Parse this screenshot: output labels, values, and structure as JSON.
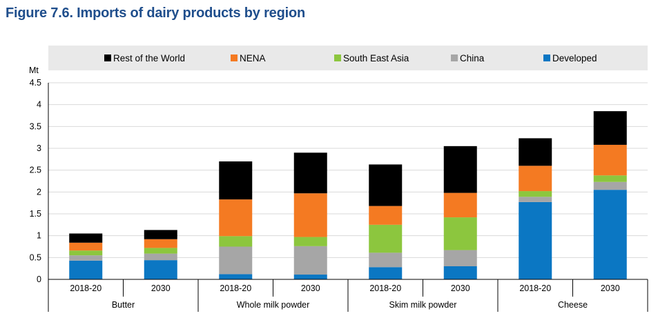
{
  "figure": {
    "title": "Figure 7.6. Imports of dairy products by region"
  },
  "chart_data": {
    "type": "bar",
    "stacked": true,
    "title": "Figure 7.6. Imports of dairy products by region",
    "ylabel": "Mt",
    "xlabel": "",
    "ylim": [
      0,
      4.5
    ],
    "yticks": [
      "0",
      "0.5",
      "1",
      "1.5",
      "2",
      "2.5",
      "3",
      "3.5",
      "4",
      "4.5"
    ],
    "groups": [
      "Butter",
      "Whole milk powder",
      "Skim milk powder",
      "Cheese"
    ],
    "categories": [
      "2018-20",
      "2030",
      "2018-20",
      "2030",
      "2018-20",
      "2030",
      "2018-20",
      "2030"
    ],
    "legend_position": "top",
    "legend_order": [
      "Rest of the World",
      "NENA",
      "South East Asia",
      "China",
      "Developed"
    ],
    "series": [
      {
        "name": "Developed",
        "color": "#0b77c3",
        "values": [
          0.43,
          0.44,
          0.12,
          0.11,
          0.28,
          0.3,
          1.77,
          2.05
        ]
      },
      {
        "name": "China",
        "color": "#a6a6a6",
        "values": [
          0.12,
          0.15,
          0.63,
          0.65,
          0.33,
          0.37,
          0.12,
          0.18
        ]
      },
      {
        "name": "South East Asia",
        "color": "#8cc63e",
        "values": [
          0.11,
          0.13,
          0.24,
          0.21,
          0.64,
          0.75,
          0.13,
          0.15
        ]
      },
      {
        "name": "NENA",
        "color": "#f47a22",
        "values": [
          0.18,
          0.2,
          0.84,
          1.0,
          0.43,
          0.56,
          0.58,
          0.7
        ]
      },
      {
        "name": "Rest of the World",
        "color": "#000000",
        "values": [
          0.21,
          0.21,
          0.87,
          0.93,
          0.95,
          1.07,
          0.63,
          0.77
        ]
      }
    ]
  }
}
